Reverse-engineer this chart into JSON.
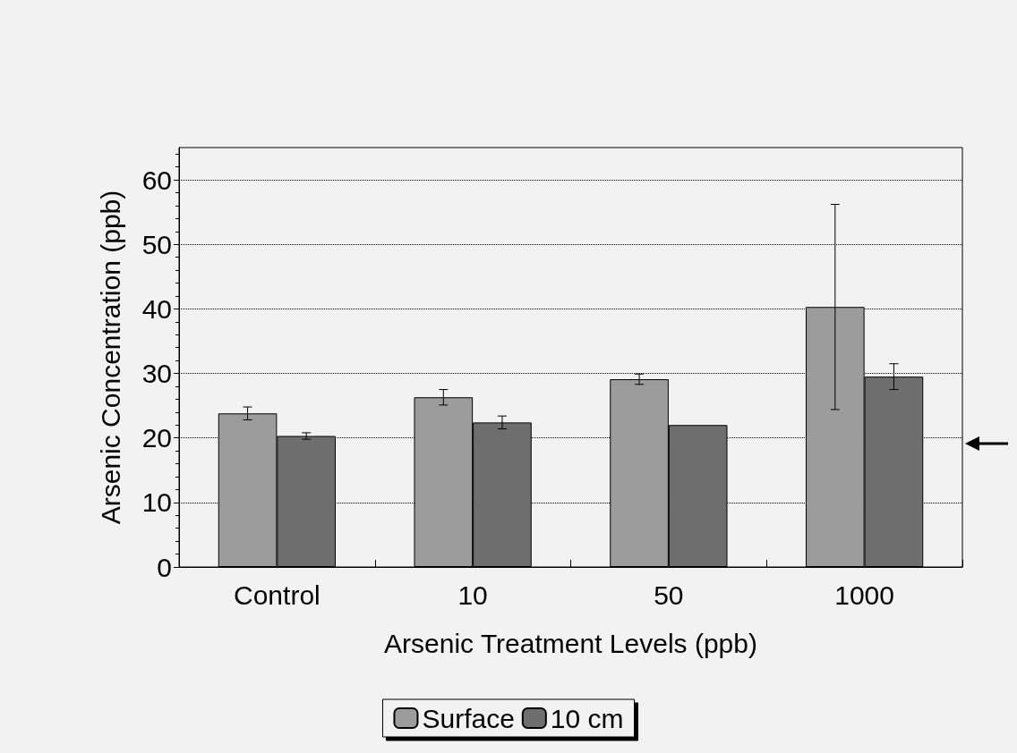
{
  "chart_data": {
    "type": "bar",
    "xlabel": "Arsenic Treatment Levels (ppb)",
    "ylabel": "Arsenic Concentration (ppb)",
    "categories": [
      "Control",
      "10",
      "50",
      "1000"
    ],
    "series": [
      {
        "name": "Surface",
        "color": "#9c9c9c",
        "values": [
          23.8,
          26.3,
          29.1,
          40.3
        ],
        "errors": [
          1,
          1.2,
          0.8,
          15.9
        ]
      },
      {
        "name": "10 cm",
        "color": "#6e6e6e",
        "values": [
          20.3,
          22.4,
          22.0,
          29.5
        ],
        "errors": [
          0.5,
          1,
          null,
          2
        ]
      }
    ],
    "ylim": [
      0,
      65
    ],
    "yticks": [
      0,
      10,
      20,
      30,
      40,
      50,
      60
    ],
    "grid": "y",
    "legend": "bottom"
  }
}
